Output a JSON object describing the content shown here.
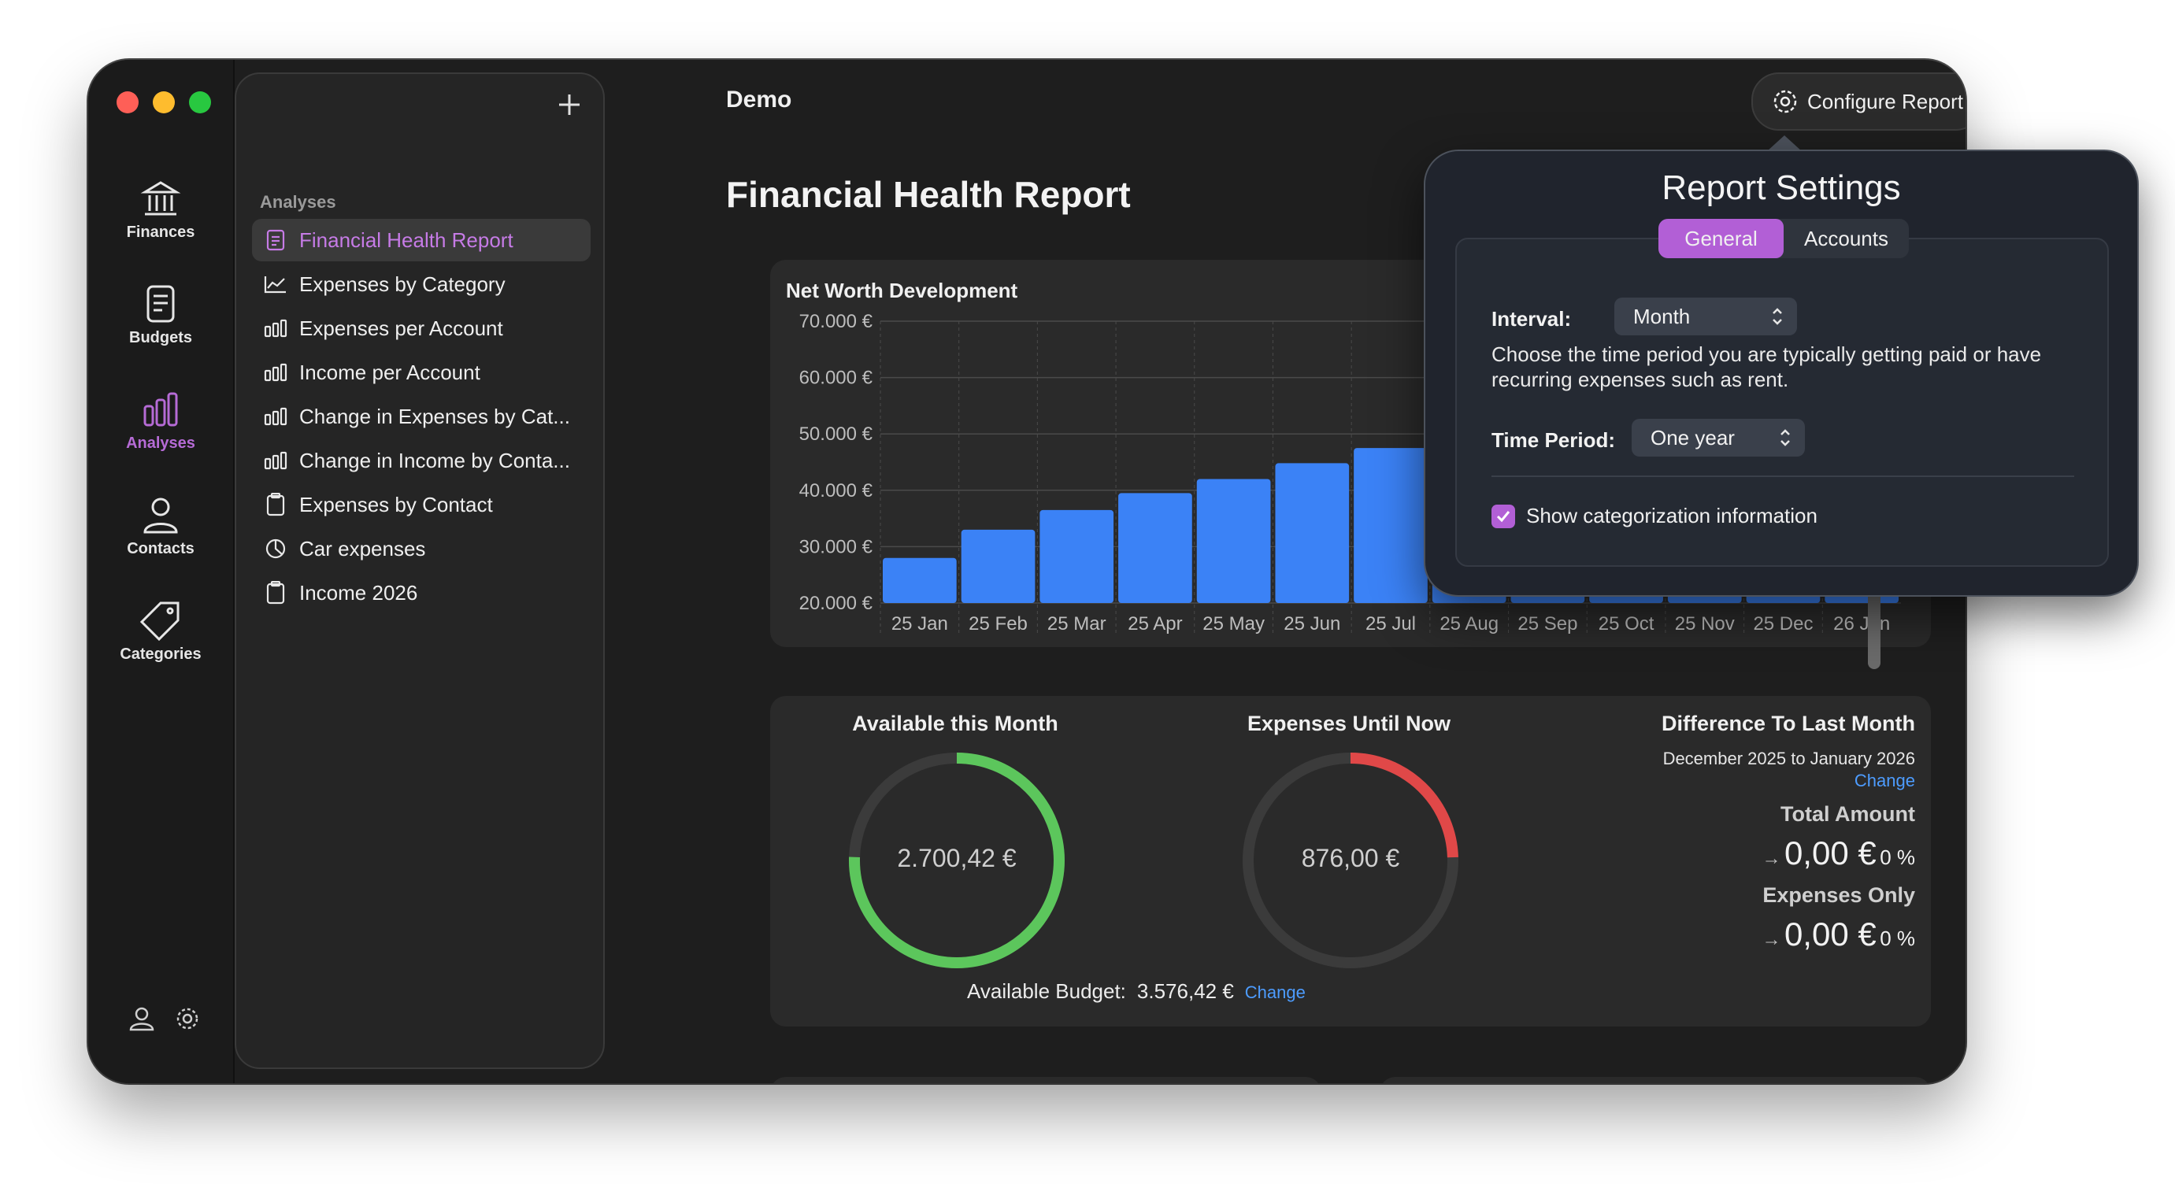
{
  "window": {
    "title": "Demo"
  },
  "rail": {
    "items": [
      {
        "label": "Finances",
        "icon": "bank-icon"
      },
      {
        "label": "Budgets",
        "icon": "document-icon"
      },
      {
        "label": "Analyses",
        "icon": "bar-chart-icon"
      },
      {
        "label": "Contacts",
        "icon": "person-icon"
      },
      {
        "label": "Categories",
        "icon": "tag-icon"
      }
    ]
  },
  "sidebar": {
    "section": "Analyses",
    "items": [
      {
        "label": "Financial Health Report",
        "icon": "report-icon"
      },
      {
        "label": "Expenses by Category",
        "icon": "line-chart-icon"
      },
      {
        "label": "Expenses per Account",
        "icon": "bar-chart-icon"
      },
      {
        "label": "Income per Account",
        "icon": "bar-chart-icon"
      },
      {
        "label": "Change in Expenses by Cat...",
        "icon": "bar-chart-icon"
      },
      {
        "label": "Change in Income by Conta...",
        "icon": "bar-chart-icon"
      },
      {
        "label": "Expenses by Contact",
        "icon": "clipboard-icon"
      },
      {
        "label": "Car expenses",
        "icon": "pie-icon"
      },
      {
        "label": "Income 2026",
        "icon": "clipboard-icon"
      }
    ]
  },
  "toolbar": {
    "configure_label": "Configure Report"
  },
  "report": {
    "title": "Financial Health Report"
  },
  "net_worth": {
    "title": "Net Worth Development",
    "y_ticks": [
      "70.000 €",
      "60.000 €",
      "50.000 €",
      "40.000 €",
      "30.000 €",
      "20.000 €"
    ],
    "chart_data": {
      "type": "bar",
      "categories": [
        "25 Jan",
        "25 Feb",
        "25 Mar",
        "25 Apr",
        "25 May",
        "25 Jun",
        "25 Jul",
        "25 Aug",
        "25 Sep",
        "25 Oct",
        "25 Nov",
        "25 Dec",
        "26 Jan"
      ],
      "values": [
        28000,
        33000,
        36500,
        39500,
        42000,
        44800,
        47500,
        50000,
        52500,
        55000,
        57500,
        60000,
        62500
      ],
      "ylim": [
        20000,
        70000
      ],
      "color": "#3b82f6"
    }
  },
  "summary": {
    "available": {
      "title": "Available this Month",
      "value": "2.700,42 €",
      "fraction": 0.755,
      "color": "#5cc65c"
    },
    "expenses": {
      "title": "Expenses Until Now",
      "value": "876,00 €",
      "fraction": 0.245,
      "color": "#e04848"
    },
    "budget_label": "Available Budget:",
    "budget_value": "3.576,42 €",
    "change_label": "Change",
    "difference": {
      "title": "Difference To Last Month",
      "range": "December 2025 to January 2026",
      "change_label": "Change",
      "total_label": "Total Amount",
      "total_value": "0,00 €",
      "total_pct": "0 %",
      "expenses_label": "Expenses Only",
      "expenses_value": "0,00 €",
      "expenses_pct": "0 %"
    }
  },
  "popover": {
    "title": "Report Settings",
    "tabs": [
      "General",
      "Accounts"
    ],
    "interval_label": "Interval:",
    "interval_value": "Month",
    "interval_desc": "Choose the time period you are typically getting paid or have recurring expenses such as rent.",
    "period_label": "Time Period:",
    "period_value": "One year",
    "checkbox_label": "Show categorization information"
  }
}
